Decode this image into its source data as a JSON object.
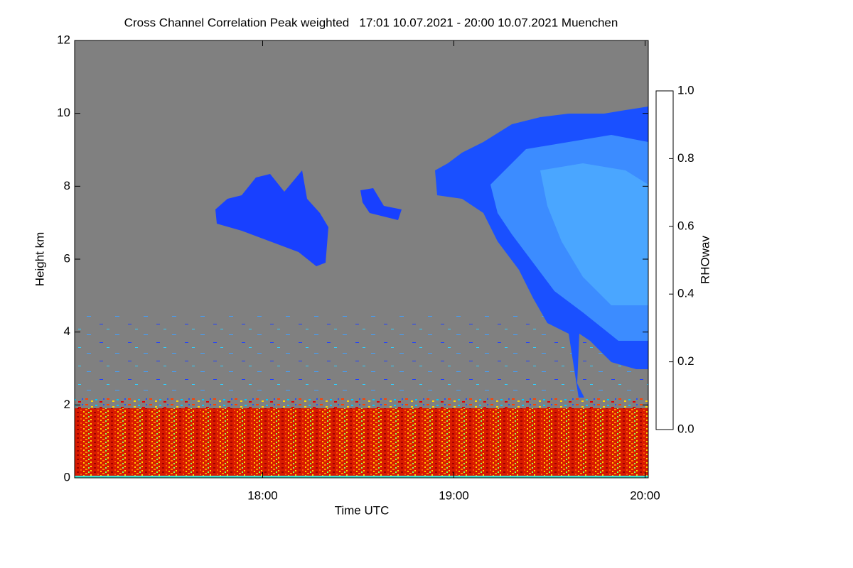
{
  "chart_data": {
    "type": "heatmap",
    "title": "Cross Channel Correlation Peak weighted   17:01 10.07.2021 - 20:00 10.07.2021 Muenchen",
    "x_label": "Time UTC",
    "y_label": "Height km",
    "xlim": [
      17.0167,
      20.0167
    ],
    "xticks": [
      {
        "value": 18,
        "label": "18:00"
      },
      {
        "value": 19,
        "label": "19:00"
      },
      {
        "value": 20,
        "label": "20:00"
      }
    ],
    "ylim": [
      0,
      12
    ],
    "yticks": [
      0,
      2,
      4,
      6,
      8,
      10,
      12
    ],
    "colorbar_label": "RHOwav",
    "colormap": "jet",
    "clim": [
      0,
      1
    ],
    "colorbar_ticks": [
      {
        "value": 0,
        "label": "0.0"
      },
      {
        "value": 0.2,
        "label": "0.2"
      },
      {
        "value": 0.4,
        "label": "0.4"
      },
      {
        "value": 0.6,
        "label": "0.6"
      },
      {
        "value": 0.8,
        "label": "0.8"
      },
      {
        "value": 1,
        "label": "1.0"
      }
    ]
  }
}
